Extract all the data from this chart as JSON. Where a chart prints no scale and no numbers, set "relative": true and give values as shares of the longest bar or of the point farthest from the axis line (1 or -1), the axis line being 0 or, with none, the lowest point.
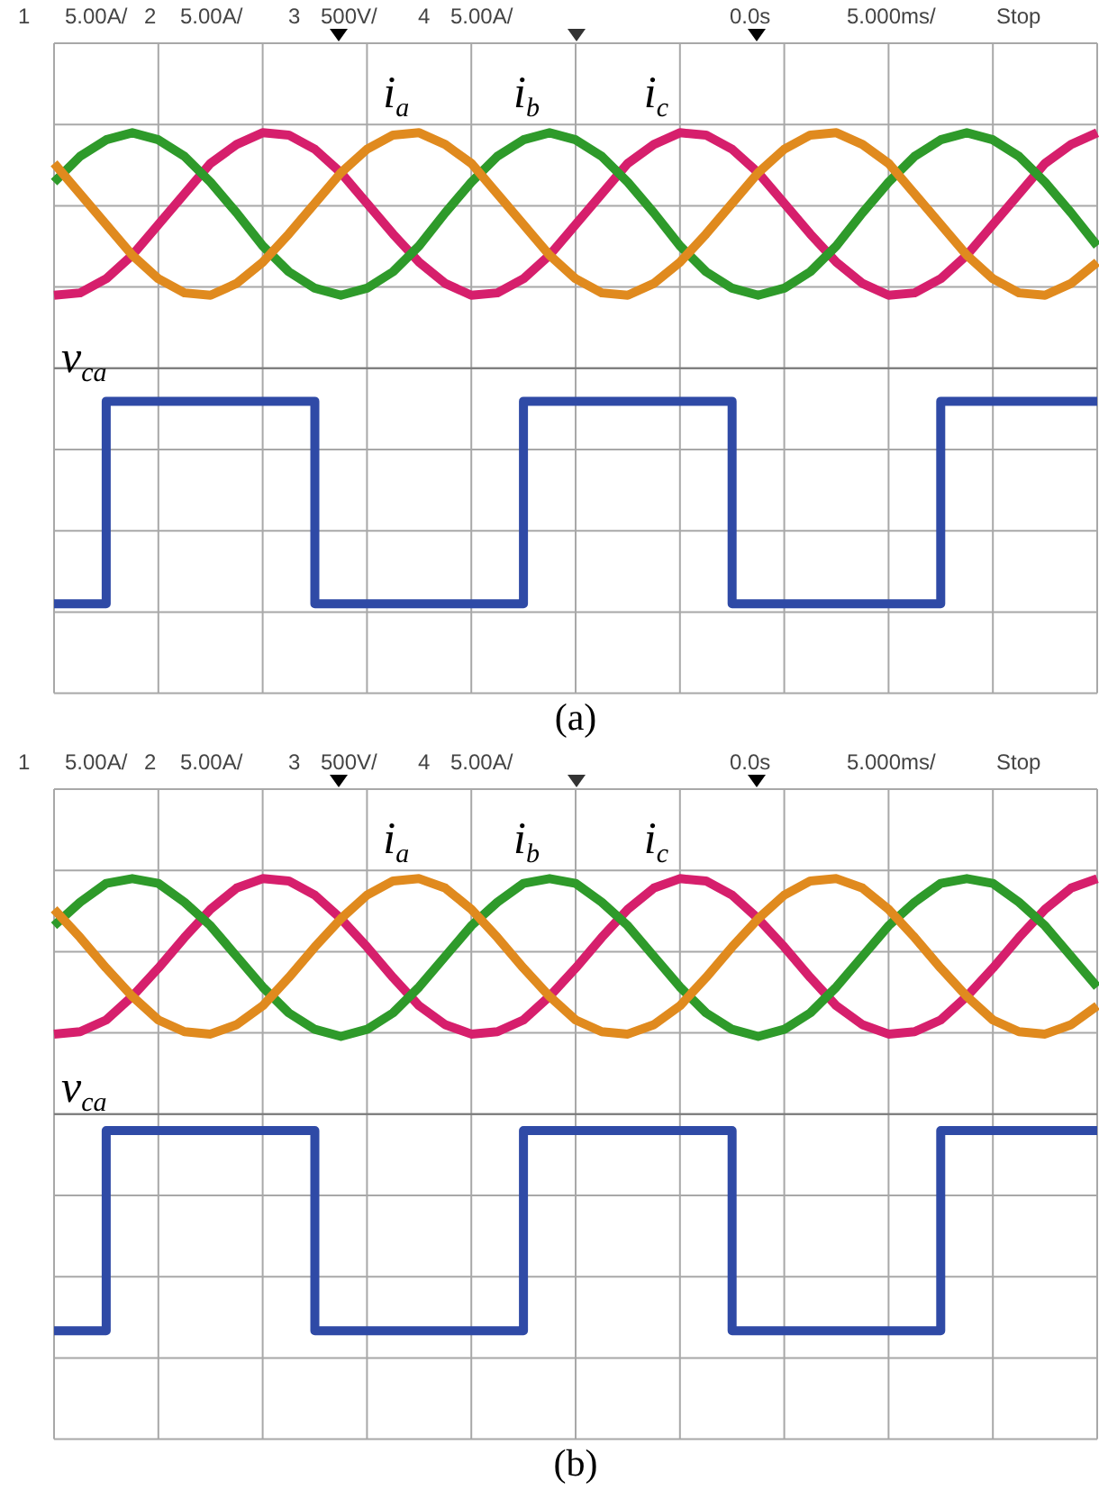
{
  "chart_data": [
    {
      "type": "line",
      "title": "(a)",
      "relative": true,
      "grid": true,
      "ref_lines": [
        {
          "axis": "y",
          "value": 0
        }
      ],
      "annotations": [
        "1",
        "5.00A/",
        "2",
        "5.00A/",
        "3",
        "500V/",
        "4",
        "5.00A/",
        "0.0s",
        "5.000ms/",
        "Stop"
      ],
      "categories": [
        null,
        null,
        null,
        null,
        null,
        null,
        null,
        null,
        null,
        null,
        null,
        null,
        null,
        null,
        null,
        null,
        null,
        null,
        null,
        null,
        null,
        null,
        null,
        null,
        null,
        null,
        null,
        null,
        null,
        null,
        null,
        null,
        null,
        null,
        null,
        null,
        null,
        null,
        null,
        null,
        null
      ],
      "series": [
        {
          "name": "i$_{a}$",
          "color": "#e08a1e",
          "values": [
            0.87,
            0.74,
            0.61,
            0.48,
            0.38,
            0.32,
            0.31,
            0.36,
            0.45,
            0.57,
            0.7,
            0.83,
            0.93,
            0.99,
            1.0,
            0.95,
            0.87,
            0.74,
            0.61,
            0.48,
            0.38,
            0.32,
            0.31,
            0.36,
            0.45,
            0.57,
            0.7,
            0.83,
            0.93,
            0.99,
            1.0,
            0.95,
            0.87,
            0.74,
            0.61,
            0.48,
            0.38,
            0.32,
            0.31,
            0.36,
            0.45
          ]
        },
        {
          "name": "i$_{b}$",
          "color": "#2e9a2a",
          "values": [
            0.79,
            0.9,
            0.97,
            1.0,
            0.97,
            0.9,
            0.79,
            0.66,
            0.52,
            0.41,
            0.34,
            0.31,
            0.34,
            0.41,
            0.52,
            0.66,
            0.79,
            0.9,
            0.97,
            1.0,
            0.97,
            0.9,
            0.79,
            0.66,
            0.52,
            0.41,
            0.34,
            0.31,
            0.34,
            0.41,
            0.52,
            0.66,
            0.79,
            0.9,
            0.97,
            1.0,
            0.97,
            0.9,
            0.79,
            0.66,
            0.52
          ]
        },
        {
          "name": "i$_{c}$",
          "color": "#d61f6c",
          "values": [
            0.31,
            0.32,
            0.38,
            0.48,
            0.61,
            0.74,
            0.87,
            0.95,
            1.0,
            0.99,
            0.93,
            0.83,
            0.7,
            0.57,
            0.45,
            0.36,
            0.31,
            0.32,
            0.38,
            0.48,
            0.61,
            0.74,
            0.87,
            0.95,
            1.0,
            0.99,
            0.93,
            0.83,
            0.7,
            0.57,
            0.45,
            0.36,
            0.31,
            0.32,
            0.38,
            0.48,
            0.61,
            0.74,
            0.87,
            0.95,
            1.0
          ]
        },
        {
          "name": "v$_{ca}$",
          "type": "step",
          "color": "#2f4aa6",
          "values": [
            -1.0,
            -1.0,
            -1.0,
            -0.14,
            -0.14,
            -0.14,
            -0.14,
            -0.14,
            -0.14,
            -0.14,
            -0.14,
            -1.0,
            -1.0,
            -1.0,
            -1.0,
            -1.0,
            -1.0,
            -1.0,
            -1.0,
            -0.14,
            -0.14,
            -0.14,
            -0.14,
            -0.14,
            -0.14,
            -0.14,
            -0.14,
            -1.0,
            -1.0,
            -1.0,
            -1.0,
            -1.0,
            -1.0,
            -1.0,
            -1.0,
            -0.14,
            -0.14,
            -0.14,
            -0.14,
            -0.14,
            -0.14
          ]
        }
      ]
    },
    {
      "type": "line",
      "title": "(b)",
      "relative": true,
      "grid": true,
      "ref_lines": [
        {
          "axis": "y",
          "value": 0
        }
      ],
      "annotations": [
        "1",
        "5.00A/",
        "2",
        "5.00A/",
        "3",
        "500V/",
        "4",
        "5.00A/",
        "0.0s",
        "5.000ms/",
        "Stop"
      ],
      "categories": [
        null,
        null,
        null,
        null,
        null,
        null,
        null,
        null,
        null,
        null,
        null,
        null,
        null,
        null,
        null,
        null,
        null,
        null,
        null,
        null,
        null,
        null,
        null,
        null,
        null,
        null,
        null,
        null,
        null,
        null,
        null,
        null,
        null,
        null,
        null,
        null,
        null,
        null,
        null,
        null,
        null
      ],
      "series": [
        {
          "name": "i$_{a}$",
          "color": "#e08a1e",
          "values": [
            0.87,
            0.75,
            0.62,
            0.5,
            0.4,
            0.35,
            0.34,
            0.38,
            0.46,
            0.58,
            0.71,
            0.83,
            0.93,
            0.99,
            1.0,
            0.96,
            0.87,
            0.75,
            0.62,
            0.5,
            0.4,
            0.35,
            0.34,
            0.38,
            0.46,
            0.58,
            0.71,
            0.83,
            0.93,
            0.99,
            1.0,
            0.96,
            0.87,
            0.75,
            0.62,
            0.5,
            0.4,
            0.35,
            0.34,
            0.38,
            0.46
          ]
        },
        {
          "name": "i$_{b}$",
          "color": "#2e9a2a",
          "values": [
            0.8,
            0.9,
            0.98,
            1.0,
            0.98,
            0.9,
            0.8,
            0.67,
            0.54,
            0.43,
            0.36,
            0.33,
            0.36,
            0.43,
            0.54,
            0.67,
            0.8,
            0.9,
            0.98,
            1.0,
            0.98,
            0.9,
            0.8,
            0.67,
            0.54,
            0.43,
            0.36,
            0.33,
            0.36,
            0.43,
            0.54,
            0.67,
            0.8,
            0.9,
            0.98,
            1.0,
            0.98,
            0.9,
            0.8,
            0.67,
            0.54
          ]
        },
        {
          "name": "i$_{c}$",
          "color": "#d61f6c",
          "values": [
            0.34,
            0.35,
            0.4,
            0.5,
            0.62,
            0.75,
            0.87,
            0.96,
            1.0,
            0.99,
            0.93,
            0.83,
            0.71,
            0.58,
            0.46,
            0.38,
            0.34,
            0.35,
            0.4,
            0.5,
            0.62,
            0.75,
            0.87,
            0.96,
            1.0,
            0.99,
            0.93,
            0.83,
            0.71,
            0.58,
            0.46,
            0.38,
            0.34,
            0.35,
            0.4,
            0.5,
            0.62,
            0.75,
            0.87,
            0.96,
            1.0
          ]
        },
        {
          "name": "v$_{ca}$",
          "type": "step",
          "color": "#2f4aa6",
          "values": [
            -0.92,
            -0.92,
            -0.92,
            -0.07,
            -0.07,
            -0.07,
            -0.07,
            -0.07,
            -0.07,
            -0.07,
            -0.07,
            -0.92,
            -0.92,
            -0.92,
            -0.92,
            -0.92,
            -0.92,
            -0.92,
            -0.92,
            -0.07,
            -0.07,
            -0.07,
            -0.07,
            -0.07,
            -0.07,
            -0.07,
            -0.07,
            -0.92,
            -0.92,
            -0.92,
            -0.92,
            -0.92,
            -0.92,
            -0.92,
            -0.92,
            -0.07,
            -0.07,
            -0.07,
            -0.07,
            -0.07,
            -0.07
          ]
        }
      ]
    }
  ]
}
